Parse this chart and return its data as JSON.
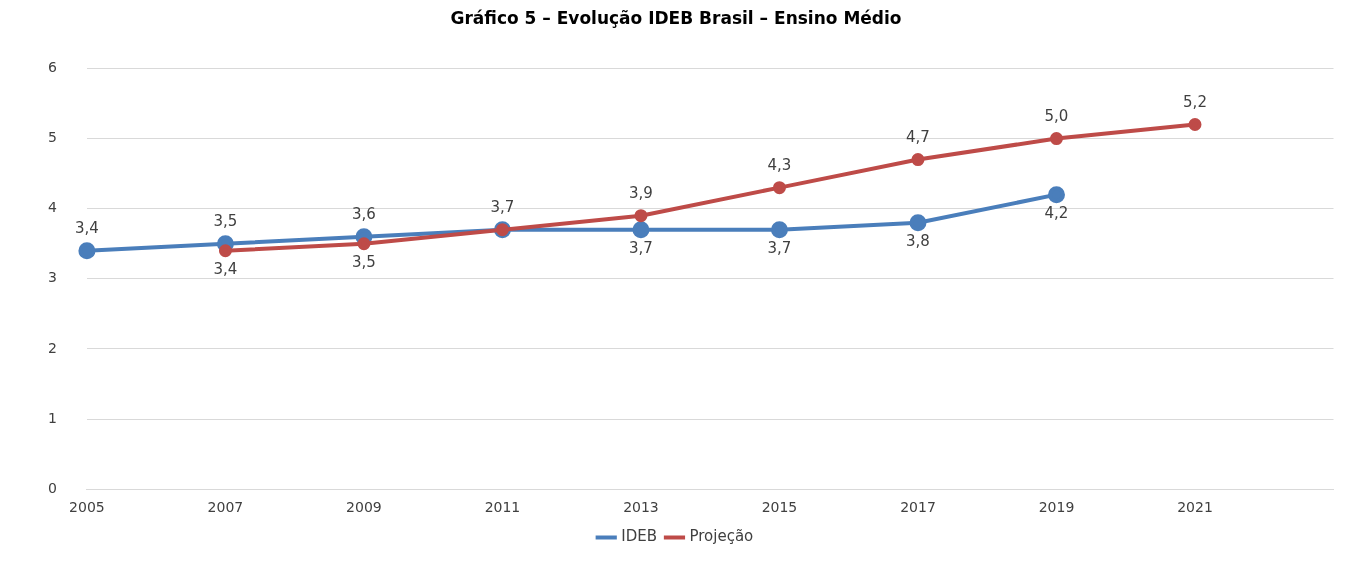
{
  "chart_data": {
    "type": "line",
    "title": "Gráfico 5 – Evolução IDEB Brasil – Ensino Médio",
    "categories": [
      "2005",
      "2007",
      "2009",
      "2011",
      "2013",
      "2015",
      "2017",
      "2019",
      "2021",
      null
    ],
    "series": [
      {
        "name": "IDEB",
        "color": "#4a7ebb",
        "values": [
          3.4,
          3.5,
          3.6,
          3.7,
          3.7,
          3.7,
          3.8,
          4.2,
          null,
          null
        ],
        "value_labels": [
          "3,4",
          "3,5",
          "3,6",
          "3,7",
          "3,7",
          "3,7",
          "3,8",
          "4,2",
          null,
          null
        ]
      },
      {
        "name": "Projeção",
        "color": "#be4b48",
        "values": [
          null,
          3.4,
          3.5,
          3.7,
          3.9,
          4.3,
          4.7,
          5.0,
          5.2,
          null
        ],
        "value_labels": [
          null,
          "3,4",
          "3,5",
          null,
          "3,9",
          "4,3",
          "4,7",
          "5,0",
          "5,2",
          null
        ]
      }
    ],
    "ylim": [
      0,
      6
    ],
    "yticks": [
      0,
      1,
      2,
      3,
      4,
      5,
      6
    ],
    "grid": "y",
    "legend": "bottom",
    "marker": "circle",
    "line_style": "solid"
  }
}
